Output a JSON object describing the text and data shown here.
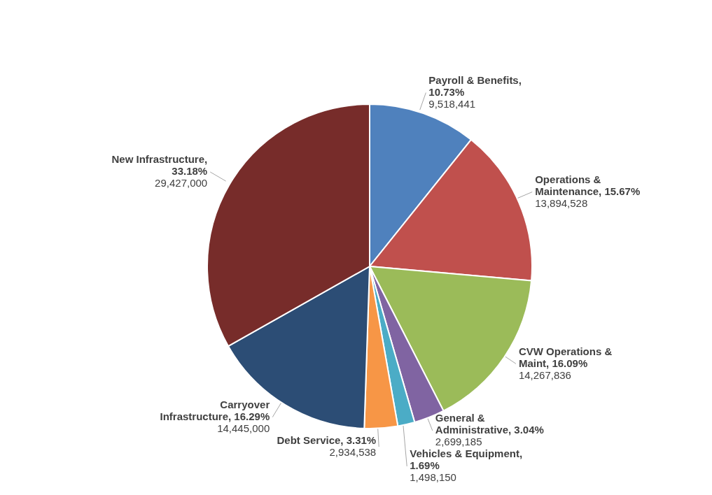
{
  "chart_data": {
    "type": "pie",
    "categories": [
      "Payroll & Benefits, 10.73%",
      "Operations & Maintenance, 15.67%",
      "CVW Operations & Maint, 16.09%",
      "General & Administrative, 3.04%",
      "Vehicles & Equipment, 1.69%",
      "Debt Service, 3.31%",
      "Carryover Infrastructure, 16.29%",
      "New Infrastructure, 33.18%"
    ],
    "values": [
      9518441,
      13894528,
      14267836,
      2699185,
      1498150,
      2934538,
      14445000,
      29427000
    ],
    "value_labels": [
      "9,518,441",
      "13,894,528",
      "14,267,836",
      "2,699,185",
      "1,498,150",
      "2,934,538",
      "14,445,000",
      "29,427,000"
    ],
    "colors": [
      "#4f81bd",
      "#c0504d",
      "#9bbb59",
      "#8064a2",
      "#4bacc6",
      "#f79646",
      "#2c4d75",
      "#772c2a"
    ]
  }
}
